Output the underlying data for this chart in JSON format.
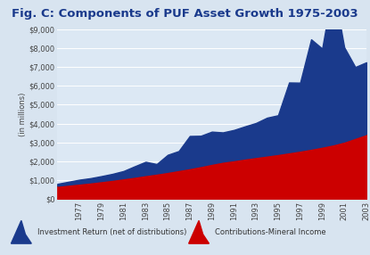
{
  "title": "Fig. C: Components of PUF Asset Growth 1975-2003",
  "ylabel": "(in millions)",
  "years": [
    1975,
    1976,
    1977,
    1978,
    1979,
    1980,
    1981,
    1982,
    1983,
    1984,
    1985,
    1986,
    1987,
    1988,
    1989,
    1990,
    1991,
    1992,
    1993,
    1994,
    1995,
    1996,
    1997,
    1998,
    1999,
    2000,
    2001,
    2002,
    2003
  ],
  "contributions": [
    700,
    760,
    820,
    880,
    950,
    1020,
    1100,
    1180,
    1270,
    1350,
    1440,
    1540,
    1640,
    1750,
    1870,
    1980,
    2060,
    2150,
    2230,
    2310,
    2390,
    2480,
    2570,
    2670,
    2780,
    2900,
    3050,
    3250,
    3450
  ],
  "investment": [
    100,
    150,
    200,
    220,
    260,
    310,
    380,
    550,
    700,
    500,
    900,
    1000,
    1700,
    1600,
    1700,
    1550,
    1600,
    1700,
    1800,
    2000,
    2050,
    3700,
    3600,
    5800,
    5200,
    8400,
    5000,
    3750,
    3800
  ],
  "contributions_color": "#cc0000",
  "investment_color": "#1a3a8c",
  "background_color": "#d8e4f0",
  "title_bg_color": "#a8bcd8",
  "plot_bg_color": "#dce8f4",
  "grid_color": "#ffffff",
  "ylim": [
    0,
    9000
  ],
  "yticks": [
    0,
    1000,
    2000,
    3000,
    4000,
    5000,
    6000,
    7000,
    8000,
    9000
  ],
  "ytick_labels": [
    "$0",
    "$1,000",
    "$2,000",
    "$3,000",
    "$4,000",
    "$5,000",
    "$6,000",
    "$7,000",
    "$8,000",
    "$9,000"
  ],
  "xtick_years": [
    1977,
    1979,
    1981,
    1983,
    1985,
    1987,
    1989,
    1991,
    1993,
    1995,
    1997,
    1999,
    2001,
    2003
  ],
  "legend_investment": "Investment Return (net of distributions)",
  "legend_contributions": "Contributions-Mineral Income",
  "title_fontsize": 9.5,
  "tick_fontsize": 6,
  "ylabel_fontsize": 6,
  "legend_fontsize": 6
}
